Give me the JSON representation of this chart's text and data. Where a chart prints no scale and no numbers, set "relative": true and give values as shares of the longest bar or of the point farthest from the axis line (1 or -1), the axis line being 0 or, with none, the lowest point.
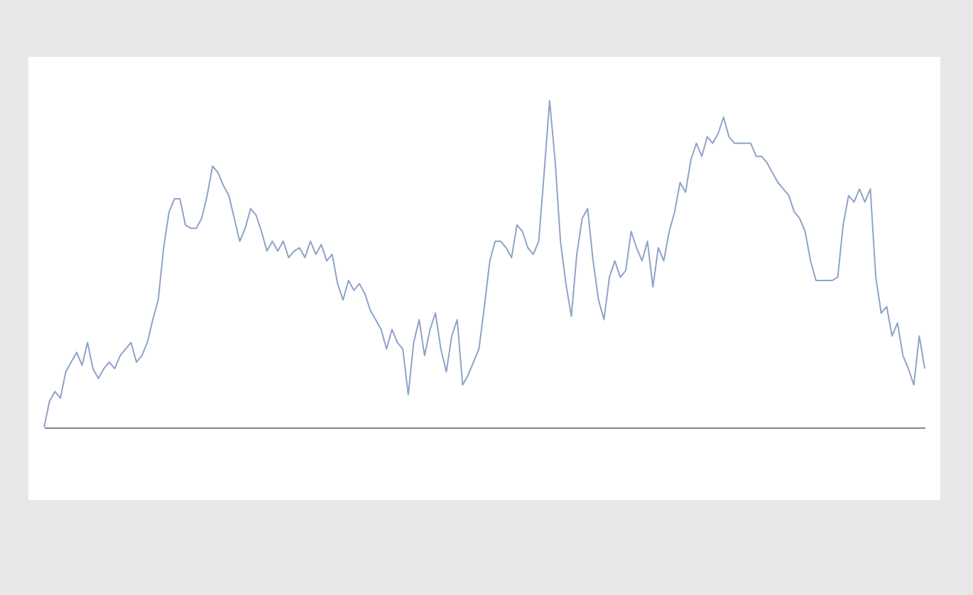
{
  "chart_data": {
    "type": "line",
    "relative": true,
    "line_style": "solid",
    "categories": [
      null,
      null,
      null,
      null,
      null,
      null,
      null,
      null,
      null,
      null,
      null,
      null,
      null,
      null,
      null,
      null,
      null,
      null,
      null,
      null,
      null,
      null,
      null,
      null,
      null,
      null,
      null,
      null,
      null,
      null,
      null,
      null,
      null,
      null,
      null,
      null,
      null,
      null,
      null,
      null,
      null,
      null,
      null,
      null,
      null,
      null,
      null,
      null,
      null,
      null,
      null,
      null,
      null,
      null,
      null,
      null,
      null,
      null,
      null,
      null,
      null,
      null,
      null,
      null,
      null,
      null,
      null,
      null,
      null,
      null,
      null,
      null,
      null,
      null,
      null,
      null,
      null,
      null,
      null,
      null,
      null,
      null,
      null,
      null,
      null,
      null,
      null,
      null,
      null,
      null,
      null,
      null,
      null,
      null,
      null,
      null,
      null,
      null,
      null,
      null,
      null,
      null,
      null,
      null,
      null,
      null,
      null,
      null,
      null,
      null,
      null,
      null,
      null,
      null,
      null,
      null,
      null,
      null,
      null,
      null,
      null,
      null,
      null,
      null,
      null,
      null,
      null,
      null,
      null,
      null,
      null,
      null,
      null,
      null,
      null,
      null,
      null,
      null,
      null,
      null,
      null,
      null,
      null,
      null,
      null,
      null,
      null,
      null,
      null,
      null,
      null,
      null,
      null,
      null,
      null,
      null,
      null,
      null,
      null,
      null,
      null,
      null,
      null
    ],
    "series": [
      {
        "color": "#8fa3c8",
        "values": [
          0,
          0.08,
          0.11,
          0.09,
          0.17,
          0.2,
          0.23,
          0.19,
          0.26,
          0.18,
          0.15,
          0.18,
          0.2,
          0.18,
          0.22,
          0.24,
          0.26,
          0.2,
          0.22,
          0.26,
          0.33,
          0.39,
          0.55,
          0.66,
          0.7,
          0.7,
          0.62,
          0.61,
          0.61,
          0.64,
          0.71,
          0.8,
          0.78,
          0.74,
          0.71,
          0.64,
          0.57,
          0.61,
          0.67,
          0.65,
          0.6,
          0.54,
          0.57,
          0.54,
          0.57,
          0.52,
          0.54,
          0.55,
          0.52,
          0.57,
          0.53,
          0.56,
          0.51,
          0.53,
          0.44,
          0.39,
          0.45,
          0.42,
          0.44,
          0.41,
          0.36,
          0.33,
          0.3,
          0.24,
          0.3,
          0.26,
          0.24,
          0.1,
          0.26,
          0.33,
          0.22,
          0.3,
          0.35,
          0.24,
          0.17,
          0.28,
          0.33,
          0.13,
          0.16,
          0.2,
          0.24,
          0.37,
          0.51,
          0.57,
          0.57,
          0.55,
          0.52,
          0.62,
          0.6,
          0.55,
          0.53,
          0.57,
          0.78,
          1,
          0.82,
          0.57,
          0.44,
          0.34,
          0.53,
          0.64,
          0.67,
          0.51,
          0.39,
          0.33,
          0.46,
          0.51,
          0.46,
          0.48,
          0.6,
          0.55,
          0.51,
          0.57,
          0.43,
          0.55,
          0.51,
          0.6,
          0.66,
          0.75,
          0.72,
          0.82,
          0.87,
          0.83,
          0.89,
          0.87,
          0.9,
          0.95,
          0.89,
          0.87,
          0.87,
          0.87,
          0.87,
          0.83,
          0.83,
          0.81,
          0.78,
          0.75,
          0.73,
          0.71,
          0.66,
          0.64,
          0.6,
          0.51,
          0.45,
          0.45,
          0.45,
          0.45,
          0.46,
          0.62,
          0.71,
          0.69,
          0.73,
          0.69,
          0.73,
          0.46,
          0.35,
          0.37,
          0.28,
          0.32,
          0.22,
          0.18,
          0.13,
          0.28,
          0.18
        ]
      }
    ]
  }
}
